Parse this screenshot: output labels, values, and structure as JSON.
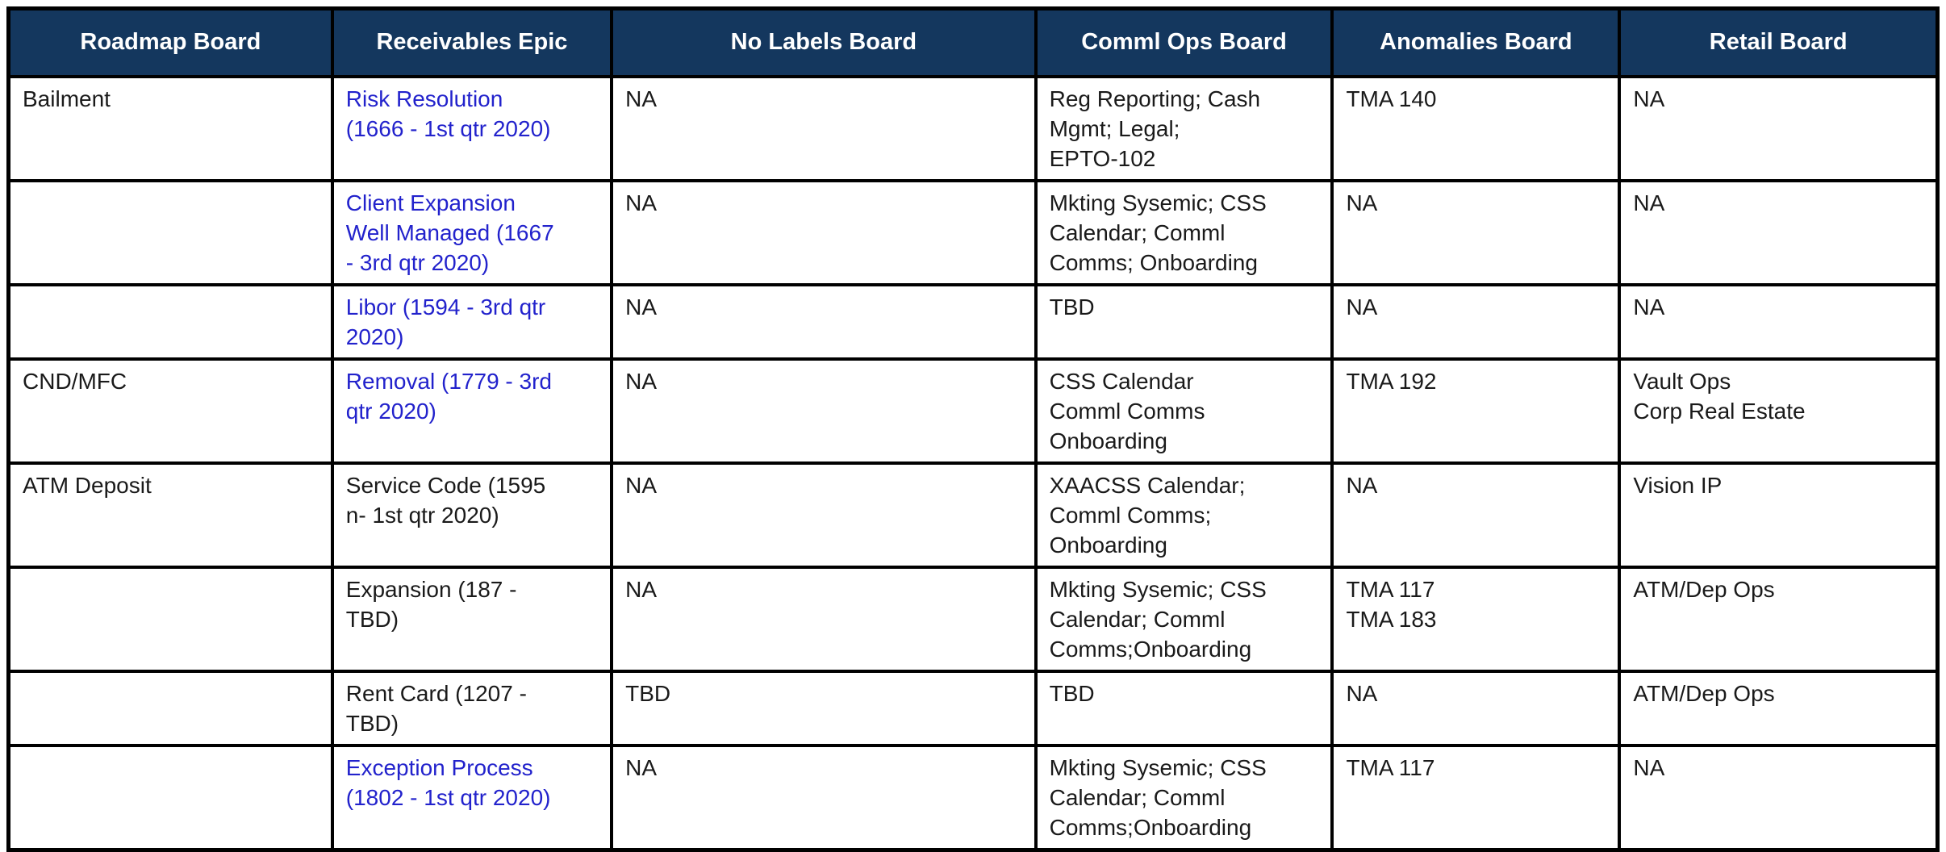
{
  "colors": {
    "header_bg": "#14375e",
    "header_text": "#ffffff",
    "text_color": "#1a1a1a",
    "link_color": "#2222cc",
    "border_color": "#000000"
  },
  "table": {
    "columns": [
      {
        "label": "Roadmap Board"
      },
      {
        "label": "Receivables Epic"
      },
      {
        "label": "No Labels Board"
      },
      {
        "label": "Comml Ops Board"
      },
      {
        "label": "Anomalies Board"
      },
      {
        "label": "Retail Board"
      }
    ],
    "rows": [
      {
        "roadmap": "Bailment",
        "epic": {
          "text": "Risk Resolution\n(1666 - 1st qtr 2020)",
          "is_link": true
        },
        "no_labels": "NA",
        "comml_ops": "Reg Reporting; Cash\nMgmt; Legal;\nEPTO-102",
        "anomalies": "TMA 140",
        "retail": "NA"
      },
      {
        "roadmap": "",
        "epic": {
          "text": "Client Expansion\nWell Managed (1667\n- 3rd qtr 2020)",
          "is_link": true
        },
        "no_labels": "NA",
        "comml_ops": "Mkting Sysemic; CSS\nCalendar; Comml\nComms; Onboarding",
        "anomalies": "NA",
        "retail": "NA"
      },
      {
        "roadmap": "",
        "epic": {
          "text": "Libor (1594 - 3rd qtr\n2020)",
          "is_link": true
        },
        "no_labels": "NA",
        "comml_ops": "TBD",
        "anomalies": "NA",
        "retail": "NA"
      },
      {
        "roadmap": "CND/MFC",
        "epic": {
          "text": "Removal (1779 - 3rd\nqtr 2020)",
          "is_link": true
        },
        "no_labels": "NA",
        "comml_ops": "CSS Calendar\nComml Comms\nOnboarding",
        "anomalies": "TMA 192",
        "retail": "Vault Ops\nCorp Real Estate"
      },
      {
        "roadmap": "ATM Deposit",
        "epic": {
          "text": "Service Code (1595\nn- 1st qtr 2020)",
          "is_link": false
        },
        "no_labels": "NA",
        "comml_ops": "XAACSS Calendar;\nComml Comms;\nOnboarding",
        "anomalies": "NA",
        "retail": "Vision IP"
      },
      {
        "roadmap": "",
        "epic": {
          "text": "Expansion (187 -\nTBD)",
          "is_link": false
        },
        "no_labels": "NA",
        "comml_ops": "Mkting Sysemic; CSS\nCalendar; Comml\nComms;Onboarding",
        "anomalies": "TMA 117\nTMA 183",
        "retail": "ATM/Dep Ops"
      },
      {
        "roadmap": "",
        "epic": {
          "text": "Rent Card (1207 -\nTBD)",
          "is_link": false
        },
        "no_labels": "TBD",
        "comml_ops": "TBD",
        "anomalies": "NA",
        "retail": "ATM/Dep Ops"
      },
      {
        "roadmap": "",
        "epic": {
          "text": "Exception Process\n(1802 - 1st qtr 2020)",
          "is_link": true
        },
        "no_labels": "NA",
        "comml_ops": "Mkting Sysemic; CSS\nCalendar; Comml\nComms;Onboarding",
        "anomalies": "TMA 117",
        "retail": "NA"
      }
    ]
  }
}
